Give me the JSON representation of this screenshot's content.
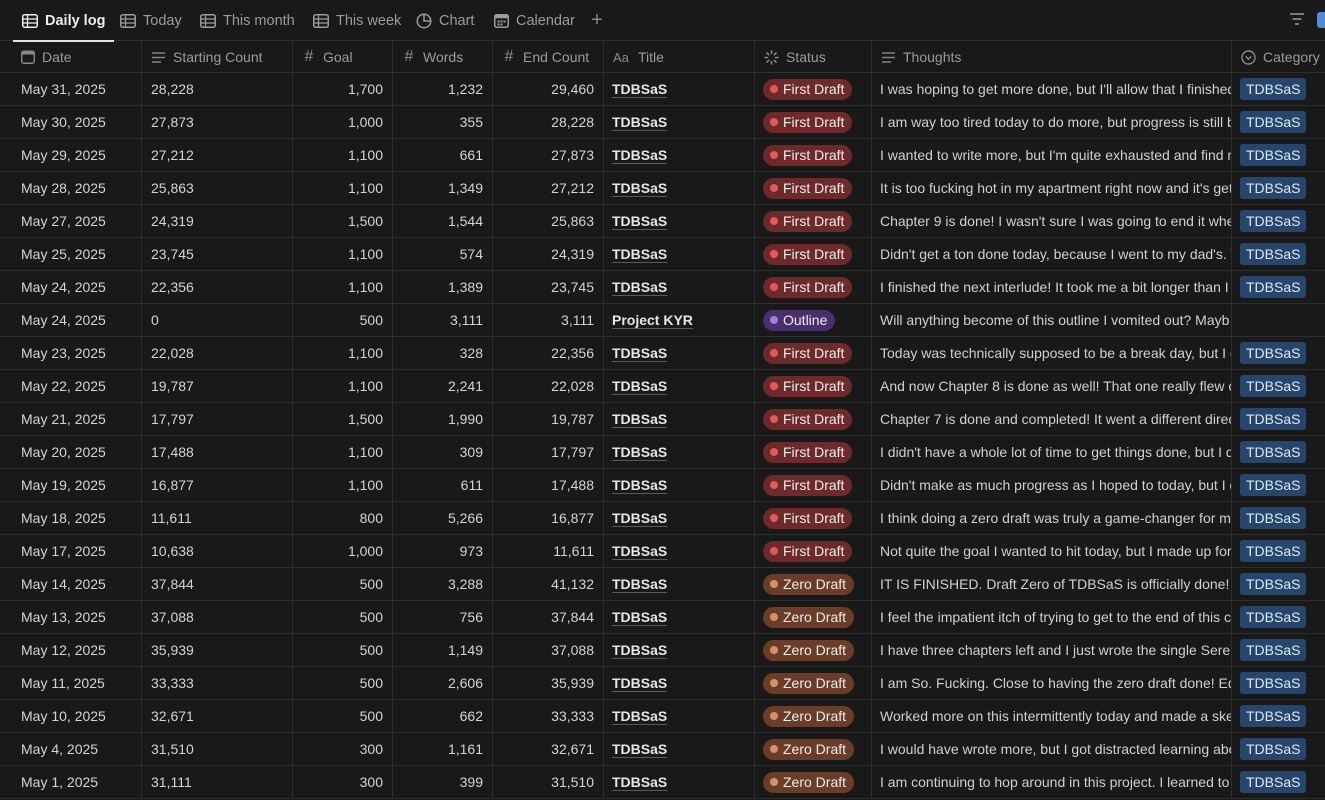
{
  "tabs": [
    {
      "label": "Daily log",
      "icon": "table-icon",
      "active": true
    },
    {
      "label": "Today",
      "icon": "table-icon",
      "active": false
    },
    {
      "label": "This month",
      "icon": "table-icon",
      "active": false
    },
    {
      "label": "This week",
      "icon": "table-icon",
      "active": false
    },
    {
      "label": "Chart",
      "icon": "chart-icon",
      "active": false
    },
    {
      "label": "Calendar",
      "icon": "calendar-icon",
      "active": false
    }
  ],
  "add_view_label": "+",
  "columns": {
    "date": "Date",
    "starting_count": "Starting Count",
    "goal": "Goal",
    "words": "Words",
    "end_count": "End Count",
    "title": "Title",
    "status": "Status",
    "thoughts": "Thoughts",
    "category": "Category"
  },
  "colors": {
    "first_draft": "#6e2a2a",
    "zero_draft": "#6b3d28",
    "outline": "#4a2e6e",
    "category": "#28456c"
  },
  "rows": [
    {
      "date": "May 31, 2025",
      "start": "28,228",
      "goal": "1,700",
      "words": "1,232",
      "end": "29,460",
      "title": "TDBSaS",
      "status": "First Draft",
      "status_kind": "first",
      "thoughts": "I was hoping to get more done, but I'll allow that I finished",
      "category": "TDBSaS"
    },
    {
      "date": "May 30, 2025",
      "start": "27,873",
      "goal": "1,000",
      "words": "355",
      "end": "28,228",
      "title": "TDBSaS",
      "status": "First Draft",
      "status_kind": "first",
      "thoughts": "I am way too tired today to do more, but progress is still b",
      "category": "TDBSaS"
    },
    {
      "date": "May 29, 2025",
      "start": "27,212",
      "goal": "1,100",
      "words": "661",
      "end": "27,873",
      "title": "TDBSaS",
      "status": "First Draft",
      "status_kind": "first",
      "thoughts": "I wanted to write more, but I'm quite exhausted and find m",
      "category": "TDBSaS"
    },
    {
      "date": "May 28, 2025",
      "start": "25,863",
      "goal": "1,100",
      "words": "1,349",
      "end": "27,212",
      "title": "TDBSaS",
      "status": "First Draft",
      "status_kind": "first",
      "thoughts": "It is too fucking hot in my apartment right now and it's get",
      "category": "TDBSaS"
    },
    {
      "date": "May 27, 2025",
      "start": "24,319",
      "goal": "1,500",
      "words": "1,544",
      "end": "25,863",
      "title": "TDBSaS",
      "status": "First Draft",
      "status_kind": "first",
      "thoughts": "Chapter 9 is done! I wasn't sure I was going to end it wher",
      "category": "TDBSaS"
    },
    {
      "date": "May 25, 2025",
      "start": "23,745",
      "goal": "1,100",
      "words": "574",
      "end": "24,319",
      "title": "TDBSaS",
      "status": "First Draft",
      "status_kind": "first",
      "thoughts": "Didn't get a ton done today, because I went to my dad's. T",
      "category": "TDBSaS"
    },
    {
      "date": "May 24, 2025",
      "start": "22,356",
      "goal": "1,100",
      "words": "1,389",
      "end": "23,745",
      "title": "TDBSaS",
      "status": "First Draft",
      "status_kind": "first",
      "thoughts": "I finished the next interlude! It took me a bit longer than I",
      "category": "TDBSaS"
    },
    {
      "date": "May 24, 2025",
      "start": "0",
      "goal": "500",
      "words": "3,111",
      "end": "3,111",
      "title": "Project KYR",
      "status": "Outline",
      "status_kind": "outline",
      "thoughts": "Will anything become of this outline I vomited out? Mayb",
      "category": ""
    },
    {
      "date": "May 23, 2025",
      "start": "22,028",
      "goal": "1,100",
      "words": "328",
      "end": "22,356",
      "title": "TDBSaS",
      "status": "First Draft",
      "status_kind": "first",
      "thoughts": "Today was technically supposed to be a break day, but I di",
      "category": "TDBSaS"
    },
    {
      "date": "May 22, 2025",
      "start": "19,787",
      "goal": "1,100",
      "words": "2,241",
      "end": "22,028",
      "title": "TDBSaS",
      "status": "First Draft",
      "status_kind": "first",
      "thoughts": "And now Chapter 8 is done as well! That one really flew ou",
      "category": "TDBSaS"
    },
    {
      "date": "May 21, 2025",
      "start": "17,797",
      "goal": "1,500",
      "words": "1,990",
      "end": "19,787",
      "title": "TDBSaS",
      "status": "First Draft",
      "status_kind": "first",
      "thoughts": "Chapter 7 is done and completed! It went a different direc",
      "category": "TDBSaS"
    },
    {
      "date": "May 20, 2025",
      "start": "17,488",
      "goal": "1,100",
      "words": "309",
      "end": "17,797",
      "title": "TDBSaS",
      "status": "First Draft",
      "status_kind": "first",
      "thoughts": "I didn't have a whole lot of time to get things done, but I d",
      "category": "TDBSaS"
    },
    {
      "date": "May 19, 2025",
      "start": "16,877",
      "goal": "1,100",
      "words": "611",
      "end": "17,488",
      "title": "TDBSaS",
      "status": "First Draft",
      "status_kind": "first",
      "thoughts": "Didn't make as much progress as I hoped to today, but I d",
      "category": "TDBSaS"
    },
    {
      "date": "May 18, 2025",
      "start": "11,611",
      "goal": "800",
      "words": "5,266",
      "end": "16,877",
      "title": "TDBSaS",
      "status": "First Draft",
      "status_kind": "first",
      "thoughts": "I think doing a zero draft was truly a game-changer for me",
      "category": "TDBSaS"
    },
    {
      "date": "May 17, 2025",
      "start": "10,638",
      "goal": "1,000",
      "words": "973",
      "end": "11,611",
      "title": "TDBSaS",
      "status": "First Draft",
      "status_kind": "first",
      "thoughts": "Not quite the goal I wanted to hit today, but I made up for",
      "category": "TDBSaS"
    },
    {
      "date": "May 14, 2025",
      "start": "37,844",
      "goal": "500",
      "words": "3,288",
      "end": "41,132",
      "title": "TDBSaS",
      "status": "Zero Draft",
      "status_kind": "zero",
      "thoughts": "IT IS FINISHED. Draft Zero of TDBSaS is officially done! I've",
      "category": "TDBSaS"
    },
    {
      "date": "May 13, 2025",
      "start": "37,088",
      "goal": "500",
      "words": "756",
      "end": "37,844",
      "title": "TDBSaS",
      "status": "Zero Draft",
      "status_kind": "zero",
      "thoughts": "I feel the impatient itch of trying to get to the end of this c",
      "category": "TDBSaS"
    },
    {
      "date": "May 12, 2025",
      "start": "35,939",
      "goal": "500",
      "words": "1,149",
      "end": "37,088",
      "title": "TDBSaS",
      "status": "Zero Draft",
      "status_kind": "zero",
      "thoughts": "I have three chapters left and I just wrote the single Seren",
      "category": "TDBSaS"
    },
    {
      "date": "May 11, 2025",
      "start": "33,333",
      "goal": "500",
      "words": "2,606",
      "end": "35,939",
      "title": "TDBSaS",
      "status": "Zero Draft",
      "status_kind": "zero",
      "thoughts": "I am So. Fucking. Close to having the zero draft done! Ede",
      "category": "TDBSaS"
    },
    {
      "date": "May 10, 2025",
      "start": "32,671",
      "goal": "500",
      "words": "662",
      "end": "33,333",
      "title": "TDBSaS",
      "status": "Zero Draft",
      "status_kind": "zero",
      "thoughts": "Worked more on this intermittently today and made a ske",
      "category": "TDBSaS"
    },
    {
      "date": "May 4, 2025",
      "start": "31,510",
      "goal": "300",
      "words": "1,161",
      "end": "32,671",
      "title": "TDBSaS",
      "status": "Zero Draft",
      "status_kind": "zero",
      "thoughts": "I would have wrote more, but I got distracted learning abo",
      "category": "TDBSaS"
    },
    {
      "date": "May 1, 2025",
      "start": "31,111",
      "goal": "300",
      "words": "399",
      "end": "31,510",
      "title": "TDBSaS",
      "status": "Zero Draft",
      "status_kind": "zero",
      "thoughts": "I am continuing to hop around in this project. I learned to",
      "category": "TDBSaS"
    }
  ]
}
